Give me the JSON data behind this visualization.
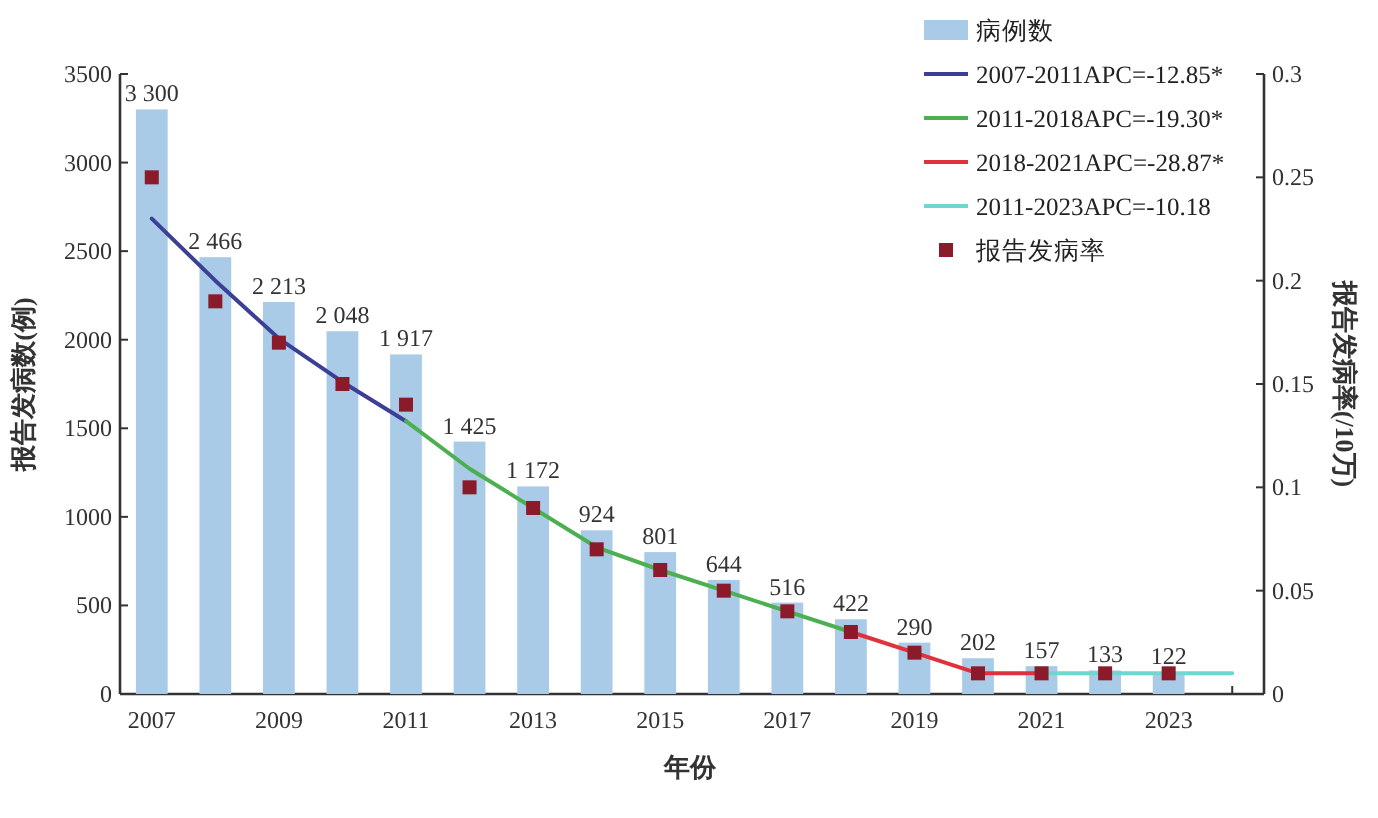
{
  "chart_data": {
    "type": "bar",
    "xlabel": "年份",
    "ylabel": "报告发病数(例)",
    "y2label": "报告发病率(/10万)",
    "x": [
      2007,
      2008,
      2009,
      2010,
      2011,
      2012,
      2013,
      2014,
      2015,
      2016,
      2017,
      2018,
      2019,
      2020,
      2021,
      2022,
      2023
    ],
    "xlim": [
      2006.5,
      2024.5
    ],
    "xticks": [
      2007,
      {
        "value": 2008,
        "label": null
      },
      2009,
      {
        "value": 2010,
        "label": null
      },
      2011,
      {
        "value": 2012,
        "label": null
      },
      2013,
      {
        "value": 2014,
        "label": null
      },
      2015,
      {
        "value": 2016,
        "label": null
      },
      2017,
      {
        "value": 2018,
        "label": null
      },
      2019,
      {
        "value": 2020,
        "label": null
      },
      2021,
      {
        "value": 2022,
        "label": null
      },
      2023,
      {
        "value": 2024,
        "label": null
      }
    ],
    "ylim": [
      0,
      3500
    ],
    "yticks": [
      0,
      500,
      1000,
      1500,
      2000,
      2500,
      3000,
      3500
    ],
    "y2lim": [
      0,
      0.3
    ],
    "y2ticks": [
      0,
      0.05,
      0.1,
      0.15,
      0.2,
      0.25,
      0.3
    ],
    "legend": "top right",
    "grid": false,
    "series": [
      {
        "name": "病例数",
        "color": "#a9cbe8",
        "values": [
          3300,
          2466,
          2213,
          2048,
          1917,
          1425,
          1172,
          924,
          801,
          644,
          516,
          422,
          290,
          202,
          157,
          133,
          122
        ],
        "value_labels": [
          "3 300",
          "2 466",
          "2 213",
          "2 048",
          "1 917",
          "1 425",
          "1 172",
          "924",
          "801",
          "644",
          "516",
          "422",
          "290",
          "202",
          "157",
          "133",
          "122"
        ]
      },
      {
        "type": "line",
        "axis": "y2",
        "name": "2007-2011APC=-12.85*",
        "color": "#3b3f96",
        "x": [
          2007,
          2008,
          2009,
          2010,
          2011
        ],
        "values": [
          0.23,
          0.2,
          0.172,
          0.151,
          0.132
        ]
      },
      {
        "type": "line",
        "axis": "y2",
        "name": "2011-2018APC=-19.30*",
        "color": "#4caf50",
        "x": [
          2011,
          2012,
          2013,
          2014,
          2015,
          2016,
          2017,
          2018
        ],
        "values": [
          0.132,
          0.109,
          0.09,
          0.071,
          0.06,
          0.05,
          0.04,
          0.03
        ]
      },
      {
        "type": "line",
        "axis": "y2",
        "name": "2018-2021APC=-28.87*",
        "color": "#e0323c",
        "x": [
          2018,
          2019,
          2020,
          2021
        ],
        "values": [
          0.03,
          0.02,
          0.01,
          0.01
        ]
      },
      {
        "type": "line",
        "axis": "y2",
        "name": "2011-2023APC=-10.18",
        "color": "#6fd6d0",
        "x": [
          2021,
          2022,
          2023,
          2024
        ],
        "values": [
          0.01,
          0.01,
          0.01,
          0.01
        ]
      },
      {
        "type": "scatter",
        "axis": "y2",
        "name": "报告发病率",
        "color": "#8b1a2b",
        "marker": "square",
        "values": [
          0.25,
          0.19,
          0.17,
          0.15,
          0.14,
          0.1,
          0.09,
          0.07,
          0.06,
          0.05,
          0.04,
          0.03,
          0.02,
          0.01,
          0.01,
          0.01,
          0.01
        ]
      }
    ]
  }
}
